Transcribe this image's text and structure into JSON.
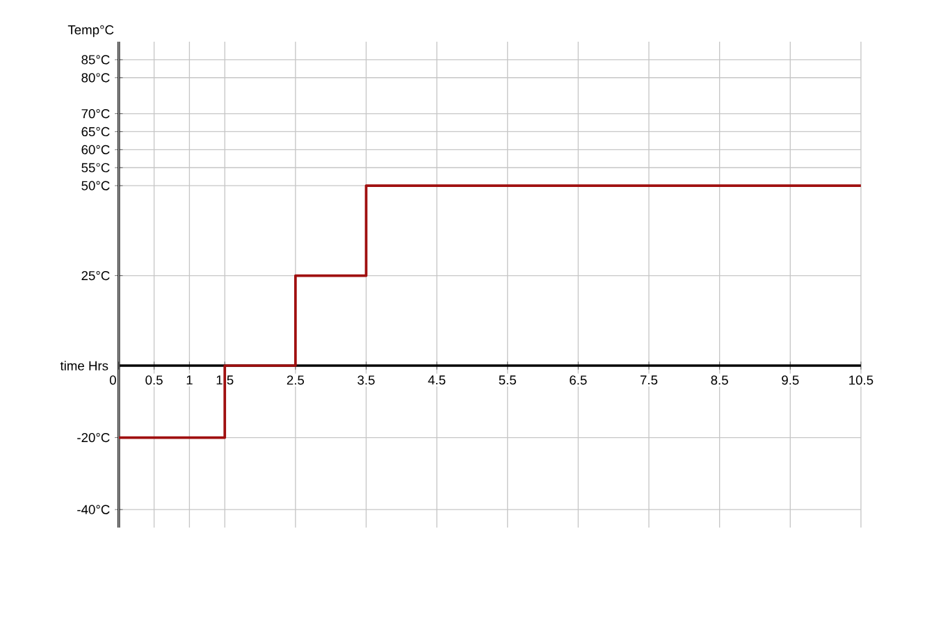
{
  "chart_data": {
    "type": "step",
    "xlabel": "time Hrs",
    "ylabel": "Temp°C",
    "x": [
      0,
      1.5,
      2.5,
      3.5,
      10.5
    ],
    "series": [
      {
        "color": "#a01010",
        "values": [
          -20,
          0,
          25,
          50,
          50
        ]
      }
    ],
    "xlim": [
      0,
      10.5
    ],
    "xticks": [
      0,
      0.5,
      1,
      1.5,
      2.5,
      3.5,
      4.5,
      5.5,
      6.5,
      7.5,
      8.5,
      9.5,
      10.5
    ],
    "ylim": [
      -45,
      90
    ],
    "yticks": [
      {
        "value": 85,
        "label": "85°C"
      },
      {
        "value": 80,
        "label": "80°C"
      },
      {
        "value": 70,
        "label": "70°C"
      },
      {
        "value": 65,
        "label": "65°C"
      },
      {
        "value": 60,
        "label": "60°C"
      },
      {
        "value": 55,
        "label": "55°C"
      },
      {
        "value": 50,
        "label": "50°C"
      },
      {
        "value": 25,
        "label": "25°C"
      },
      {
        "value": -20,
        "label": "-20°C"
      },
      {
        "value": -40,
        "label": "-40°C"
      }
    ],
    "grid": true,
    "marker": "none",
    "line_style": "solid"
  }
}
